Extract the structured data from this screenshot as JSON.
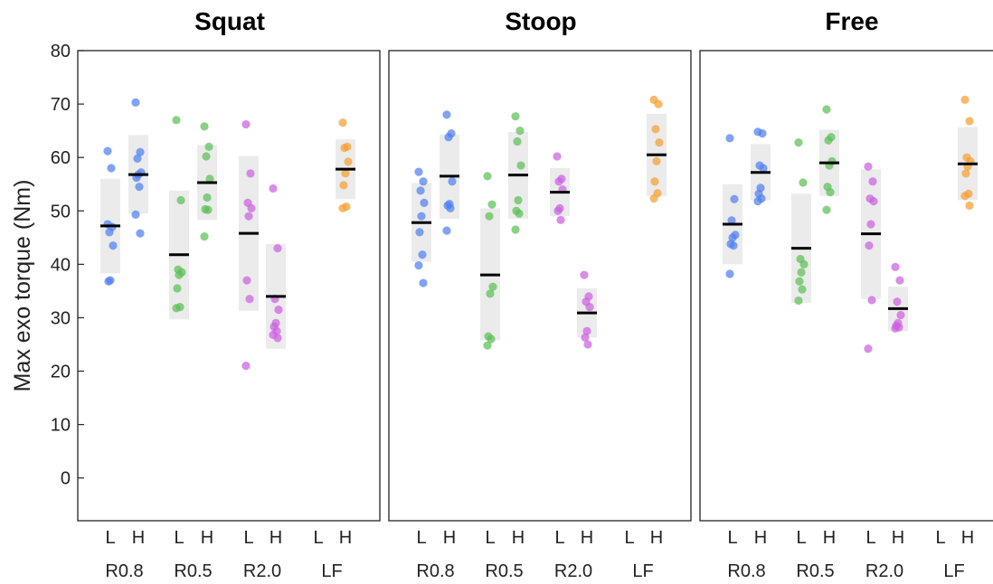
{
  "chart_data": {
    "type": "scatter",
    "ylabel": "Max exo torque (Nm)",
    "ylim": [
      -8,
      80
    ],
    "yticks": [
      0,
      10,
      20,
      30,
      40,
      50,
      60,
      70,
      80
    ],
    "level_labels": [
      "L",
      "H"
    ],
    "groups": [
      "R0.8",
      "R0.5",
      "R2.0",
      "LF"
    ],
    "colors": {
      "R0.8": "#4f7ff0",
      "R0.5": "#5cbf55",
      "R2.0": "#cc5fe0",
      "LF": "#f5a030"
    },
    "panels": [
      {
        "title": "Squat",
        "columns": [
          {
            "group": "R0.8",
            "level": "L",
            "mean": 47.2,
            "band": [
              38.3,
              56.0
            ],
            "points": [
              47.5,
              47.0,
              46.0,
              43.5,
              37.0,
              36.8,
              58.0,
              61.2
            ]
          },
          {
            "group": "R0.8",
            "level": "H",
            "mean": 56.8,
            "band": [
              49.5,
              64.2
            ],
            "points": [
              70.3,
              61.0,
              59.8,
              57.2,
              56.8,
              56.2,
              54.5,
              49.3,
              45.8
            ]
          },
          {
            "group": "R0.5",
            "level": "L",
            "mean": 41.8,
            "band": [
              29.7,
              53.8
            ],
            "points": [
              67.0,
              52.0,
              39.0,
              38.5,
              38.0,
              35.5,
              32.0,
              31.8
            ]
          },
          {
            "group": "R0.5",
            "level": "H",
            "mean": 55.3,
            "band": [
              48.3,
              62.3
            ],
            "points": [
              65.8,
              62.0,
              60.2,
              56.0,
              52.5,
              50.3,
              50.2,
              45.2
            ]
          },
          {
            "group": "R2.0",
            "level": "L",
            "mean": 45.8,
            "band": [
              31.3,
              60.3
            ],
            "points": [
              66.2,
              57.0,
              51.5,
              50.5,
              49.0,
              37.0,
              33.5,
              21.0
            ]
          },
          {
            "group": "R2.0",
            "level": "H",
            "mean": 34.0,
            "band": [
              24.2,
              43.8
            ],
            "points": [
              54.2,
              43.0,
              33.5,
              31.5,
              29.0,
              28.3,
              27.5,
              26.8,
              26.2
            ]
          },
          {
            "group": "LF",
            "level": "L",
            "mean": null,
            "band": null,
            "points": []
          },
          {
            "group": "LF",
            "level": "H",
            "mean": 57.8,
            "band": [
              52.2,
              63.4
            ],
            "points": [
              66.5,
              62.0,
              61.8,
              59.2,
              57.0,
              54.8,
              50.8,
              50.5
            ]
          }
        ]
      },
      {
        "title": "Stoop",
        "columns": [
          {
            "group": "R0.8",
            "level": "L",
            "mean": 47.8,
            "band": [
              40.5,
              55.2
            ],
            "points": [
              57.3,
              55.5,
              53.8,
              51.5,
              49.0,
              46.0,
              41.8,
              39.8,
              36.5
            ]
          },
          {
            "group": "R0.8",
            "level": "H",
            "mean": 56.5,
            "band": [
              48.5,
              64.3
            ],
            "points": [
              68.0,
              64.5,
              63.8,
              55.5,
              51.3,
              51.0,
              50.5,
              46.3
            ]
          },
          {
            "group": "R0.5",
            "level": "L",
            "mean": 38.0,
            "band": [
              25.8,
              50.5
            ],
            "points": [
              56.5,
              51.2,
              49.0,
              35.8,
              34.5,
              26.5,
              26.0,
              24.8
            ]
          },
          {
            "group": "R0.5",
            "level": "H",
            "mean": 56.7,
            "band": [
              48.5,
              64.8
            ],
            "points": [
              67.7,
              65.0,
              63.0,
              58.5,
              52.0,
              50.0,
              49.5,
              46.5
            ]
          },
          {
            "group": "R2.0",
            "level": "L",
            "mean": 53.5,
            "band": [
              49.0,
              58.0
            ],
            "points": [
              60.2,
              56.0,
              55.5,
              54.0,
              50.5,
              50.0,
              48.3
            ]
          },
          {
            "group": "R2.0",
            "level": "H",
            "mean": 30.9,
            "band": [
              26.3,
              35.5
            ],
            "points": [
              38.0,
              34.0,
              33.0,
              32.0,
              27.5,
              26.3,
              25.0
            ]
          },
          {
            "group": "LF",
            "level": "L",
            "mean": null,
            "band": null,
            "points": []
          },
          {
            "group": "LF",
            "level": "H",
            "mean": 60.5,
            "band": [
              52.8,
              68.2
            ],
            "points": [
              70.8,
              70.0,
              65.3,
              62.8,
              59.3,
              55.5,
              53.3,
              52.3
            ]
          }
        ]
      },
      {
        "title": "Free",
        "columns": [
          {
            "group": "R0.8",
            "level": "L",
            "mean": 47.5,
            "band": [
              40.0,
              55.0
            ],
            "points": [
              63.6,
              52.2,
              48.2,
              45.5,
              45.0,
              43.8,
              43.5,
              38.2
            ]
          },
          {
            "group": "R0.8",
            "level": "H",
            "mean": 57.2,
            "band": [
              52.0,
              62.5
            ],
            "points": [
              64.8,
              64.5,
              58.5,
              58.0,
              54.3,
              53.2,
              52.3,
              51.8
            ]
          },
          {
            "group": "R0.5",
            "level": "L",
            "mean": 43.0,
            "band": [
              32.8,
              53.2
            ],
            "points": [
              62.8,
              55.3,
              41.0,
              40.0,
              38.5,
              36.8,
              35.3,
              33.2
            ]
          },
          {
            "group": "R0.5",
            "level": "H",
            "mean": 59.0,
            "band": [
              52.8,
              65.2
            ],
            "points": [
              69.0,
              63.8,
              63.2,
              59.3,
              58.5,
              54.5,
              53.5,
              50.2
            ]
          },
          {
            "group": "R2.0",
            "level": "L",
            "mean": 45.7,
            "band": [
              33.5,
              57.8
            ],
            "points": [
              58.3,
              55.5,
              52.3,
              51.8,
              47.5,
              43.5,
              33.3,
              24.2
            ]
          },
          {
            "group": "R2.0",
            "level": "H",
            "mean": 31.7,
            "band": [
              27.5,
              35.8
            ],
            "points": [
              39.5,
              37.0,
              33.0,
              30.5,
              29.0,
              28.5,
              28.2,
              28.0
            ]
          },
          {
            "group": "LF",
            "level": "L",
            "mean": null,
            "band": null,
            "points": []
          },
          {
            "group": "LF",
            "level": "H",
            "mean": 58.8,
            "band": [
              52.0,
              65.7
            ],
            "points": [
              70.8,
              66.8,
              60.0,
              59.3,
              58.3,
              57.0,
              53.2,
              52.8,
              51.0
            ]
          }
        ]
      }
    ]
  }
}
